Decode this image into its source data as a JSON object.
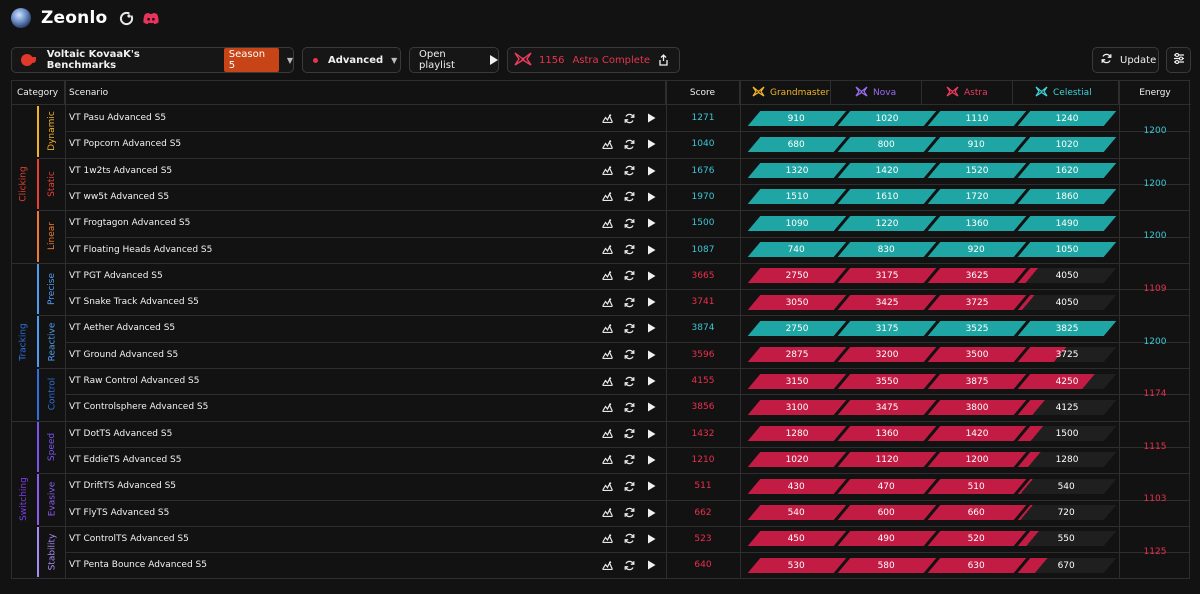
{
  "app": {
    "name": "Zeonlo"
  },
  "toolbar": {
    "benchmark_name": "Voltaic KovaaK's Benchmarks",
    "season": "Season 5",
    "difficulty": "Advanced",
    "open_playlist": "Open playlist",
    "rank_score": "1156",
    "rank_label": "Astra Complete",
    "update": "Update"
  },
  "columns": {
    "category": "Category",
    "scenario": "Scenario",
    "score": "Score",
    "grandmaster": "Grandmaster",
    "nova": "Nova",
    "astra": "Astra",
    "celestial": "Celestial",
    "energy": "Energy"
  },
  "colors": {
    "teal": "#1fa6a4",
    "pink": "#c21c45",
    "score_teal": "#3bc6d6",
    "score_pink": "#ec2f4f",
    "clicking": "#e84033",
    "tracking": "#2f6fe0",
    "switching": "#7a3fe6",
    "grandmaster": "#f0b527",
    "nova": "#9a6cf0",
    "astra": "#ec3b5e",
    "celestial": "#3fd3d8"
  },
  "categories": [
    {
      "name": "Clicking",
      "color": "#e84033"
    },
    {
      "name": "Tracking",
      "color": "#2f6fe0"
    },
    {
      "name": "Switching",
      "color": "#7a3fe6"
    }
  ],
  "subcategories": [
    {
      "name": "Dynamic",
      "color": "#f0b527"
    },
    {
      "name": "Static",
      "color": "#e84033"
    },
    {
      "name": "Linear",
      "color": "#f07a32"
    },
    {
      "name": "Precise",
      "color": "#4f9df0"
    },
    {
      "name": "Reactive",
      "color": "#4f9df0"
    },
    {
      "name": "Control",
      "color": "#2f6fe0"
    },
    {
      "name": "Speed",
      "color": "#7a54ec"
    },
    {
      "name": "Evasive",
      "color": "#8a5cf0"
    },
    {
      "name": "Stability",
      "color": "#a88cf5"
    }
  ],
  "energies": [
    "1200",
    "1200",
    "1200",
    "1109",
    "1200",
    "1174",
    "1115",
    "1103",
    "1125"
  ],
  "rows": [
    {
      "scenario": "VT Pasu Advanced S5",
      "score": "1271",
      "ranks": [
        "910",
        "1020",
        "1110",
        "1240"
      ],
      "progress": 1.0
    },
    {
      "scenario": "VT Popcorn Advanced S5",
      "score": "1040",
      "ranks": [
        "680",
        "800",
        "910",
        "1020"
      ],
      "progress": 1.0
    },
    {
      "scenario": "VT 1w2ts Advanced S5",
      "score": "1676",
      "ranks": [
        "1320",
        "1420",
        "1520",
        "1620"
      ],
      "progress": 1.0
    },
    {
      "scenario": "VT ww5t Advanced S5",
      "score": "1970",
      "ranks": [
        "1510",
        "1610",
        "1720",
        "1860"
      ],
      "progress": 1.0
    },
    {
      "scenario": "VT Frogtagon Advanced S5",
      "score": "1500",
      "ranks": [
        "1090",
        "1220",
        "1360",
        "1490"
      ],
      "progress": 1.0
    },
    {
      "scenario": "VT Floating Heads Advanced S5",
      "score": "1087",
      "ranks": [
        "740",
        "830",
        "920",
        "1050"
      ],
      "progress": 1.0
    },
    {
      "scenario": "VT PGT Advanced S5",
      "score": "3665",
      "ranks": [
        "2750",
        "3175",
        "3625",
        "4050"
      ],
      "progress": 0.09
    },
    {
      "scenario": "VT Snake Track Advanced S5",
      "score": "3741",
      "ranks": [
        "3050",
        "3425",
        "3725",
        "4050"
      ],
      "progress": 0.05
    },
    {
      "scenario": "VT Aether Advanced S5",
      "score": "3874",
      "ranks": [
        "2750",
        "3175",
        "3525",
        "3825"
      ],
      "progress": 1.0
    },
    {
      "scenario": "VT Ground Advanced S5",
      "score": "3596",
      "ranks": [
        "2875",
        "3200",
        "3500",
        "3725"
      ],
      "progress": 0.42
    },
    {
      "scenario": "VT Raw Control Advanced S5",
      "score": "4155",
      "ranks": [
        "3150",
        "3550",
        "3875",
        "4250"
      ],
      "progress": 0.75
    },
    {
      "scenario": "VT Controlsphere Advanced S5",
      "score": "3856",
      "ranks": [
        "3100",
        "3475",
        "3800",
        "4125"
      ],
      "progress": 0.17
    },
    {
      "scenario": "VT DotTS Advanced S5",
      "score": "1432",
      "ranks": [
        "1280",
        "1360",
        "1420",
        "1500"
      ],
      "progress": 0.15
    },
    {
      "scenario": "VT EddieTS Advanced S5",
      "score": "1210",
      "ranks": [
        "1020",
        "1120",
        "1200",
        "1280"
      ],
      "progress": 0.12
    },
    {
      "scenario": "VT DriftTS Advanced S5",
      "score": "511",
      "ranks": [
        "430",
        "470",
        "510",
        "540"
      ],
      "progress": 0.03
    },
    {
      "scenario": "VT FlyTS Advanced S5",
      "score": "662",
      "ranks": [
        "540",
        "600",
        "660",
        "720"
      ],
      "progress": 0.03
    },
    {
      "scenario": "VT ControlTS Advanced S5",
      "score": "523",
      "ranks": [
        "450",
        "490",
        "520",
        "550"
      ],
      "progress": 0.1
    },
    {
      "scenario": "VT Penta Bounce Advanced S5",
      "score": "640",
      "ranks": [
        "530",
        "580",
        "630",
        "670"
      ],
      "progress": 0.2
    }
  ]
}
